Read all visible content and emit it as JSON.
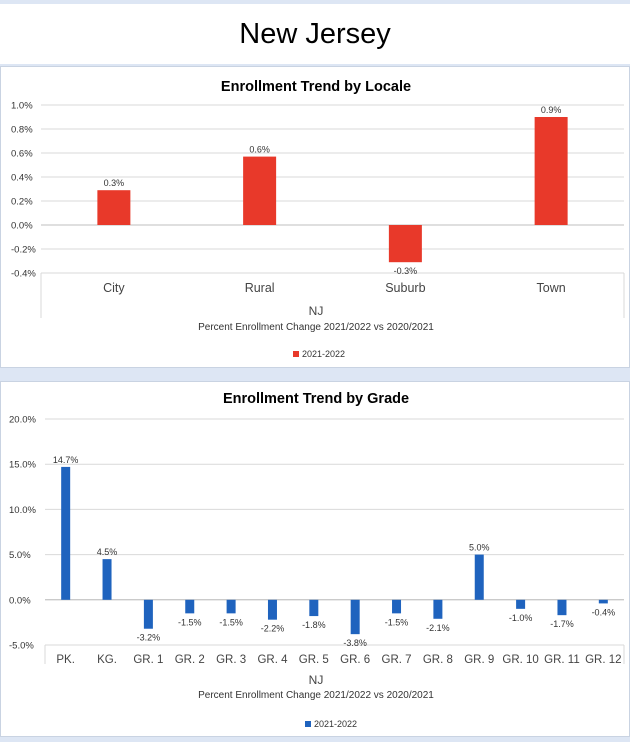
{
  "page": {
    "title": "New Jersey"
  },
  "chart_data": [
    {
      "type": "bar",
      "title": "Enrollment Trend by Locale",
      "categories": [
        "City",
        "Rural",
        "Suburb",
        "Town"
      ],
      "series": [
        {
          "name": "2021-2022",
          "values": [
            0.29,
            0.57,
            -0.31,
            0.9
          ],
          "labels": [
            "0.3%",
            "0.6%",
            "-0.3%",
            "0.9%"
          ]
        }
      ],
      "ylim": [
        -0.4,
        1.0
      ],
      "yticks": [
        "1.0%",
        "0.8%",
        "0.6%",
        "0.4%",
        "0.2%",
        "0.0%",
        "-0.2%",
        "-0.4%"
      ],
      "xlabel": "NJ",
      "subtitle": "Percent Enrollment Change 2021/2022 vs 2020/2021",
      "legend": "bottom",
      "color": "#e8392a",
      "grid": true
    },
    {
      "type": "bar",
      "title": "Enrollment Trend by Grade",
      "categories": [
        "PK.",
        "KG.",
        "GR. 1",
        "GR. 2",
        "GR. 3",
        "GR. 4",
        "GR. 5",
        "GR. 6",
        "GR. 7",
        "GR. 8",
        "GR. 9",
        "GR. 10",
        "GR. 11",
        "GR. 12"
      ],
      "series": [
        {
          "name": "2021-2022",
          "values": [
            14.7,
            4.5,
            -3.2,
            -1.5,
            -1.5,
            -2.2,
            -1.8,
            -3.8,
            -1.5,
            -2.1,
            5.0,
            -1.0,
            -1.7,
            -0.4
          ],
          "labels": [
            "14.7%",
            "4.5%",
            "-3.2%",
            "-1.5%",
            "-1.5%",
            "-2.2%",
            "-1.8%",
            "-3.8%",
            "-1.5%",
            "-2.1%",
            "5.0%",
            "-1.0%",
            "-1.7%",
            "-0.4%"
          ]
        }
      ],
      "ylim": [
        -5.0,
        20.0
      ],
      "yticks": [
        "20.0%",
        "15.0%",
        "10.0%",
        "5.0%",
        "0.0%",
        "-5.0%"
      ],
      "xlabel": "NJ",
      "subtitle": "Percent Enrollment Change 2021/2022 vs 2020/2021",
      "legend": "bottom",
      "color": "#1f63be",
      "grid": true
    }
  ]
}
